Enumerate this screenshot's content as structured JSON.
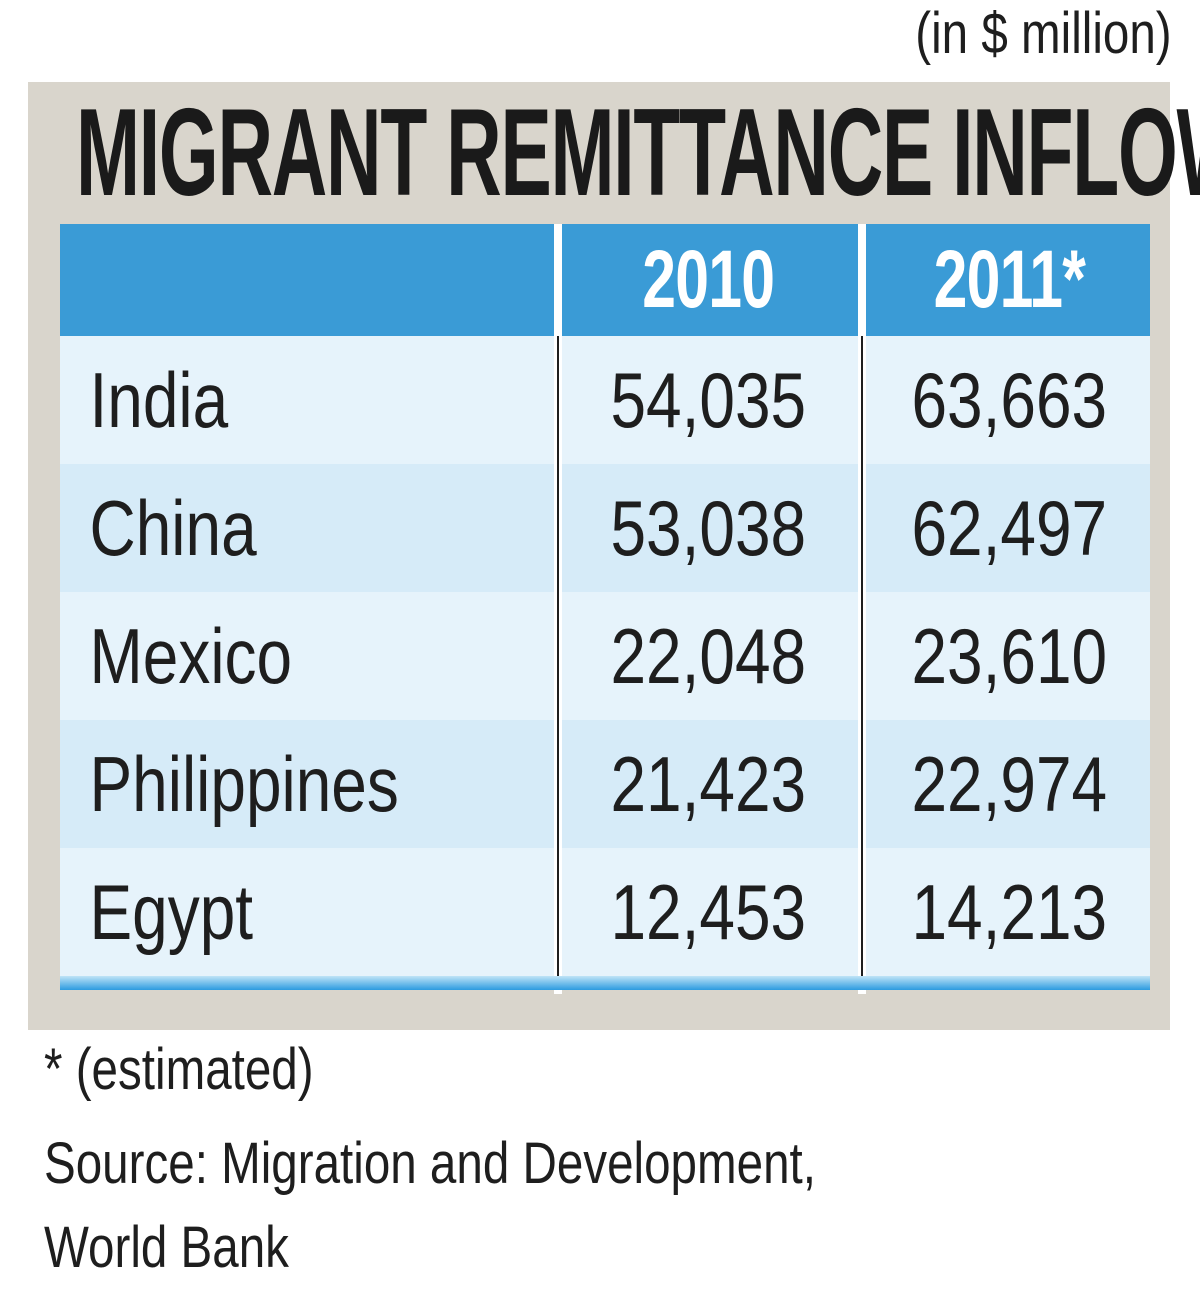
{
  "unit_note": "(in $ million)",
  "title": "MIGRANT REMITTANCE INFLOW",
  "footnote": "* (estimated)",
  "source_line1": "Source: Migration and Development,",
  "source_line2": "World Bank",
  "colors": {
    "header_blue": "#3a9bd6",
    "panel_gray": "#d9d5cc",
    "row_light": "#e6f3fb",
    "row_mid": "#d6ebf8"
  },
  "chart_data": {
    "type": "table",
    "title": "MIGRANT REMITTANCE INFLOW",
    "unit": "(in $ million)",
    "columns": [
      "",
      "2010",
      "2011*"
    ],
    "rows": [
      {
        "country": "India",
        "y2010": "54,035",
        "y2011": "63,663"
      },
      {
        "country": "China",
        "y2010": "53,038",
        "y2011": "62,497"
      },
      {
        "country": "Mexico",
        "y2010": "22,048",
        "y2011": "23,610"
      },
      {
        "country": "Philippines",
        "y2010": "21,423",
        "y2011": "22,974"
      },
      {
        "country": "Egypt",
        "y2010": "12,453",
        "y2011": "14,213"
      }
    ],
    "series": [
      {
        "name": "2010",
        "values": [
          54035,
          53038,
          22048,
          21423,
          12453
        ]
      },
      {
        "name": "2011*",
        "values": [
          63663,
          62497,
          23610,
          22974,
          14213
        ]
      }
    ],
    "categories": [
      "India",
      "China",
      "Mexico",
      "Philippines",
      "Egypt"
    ]
  }
}
